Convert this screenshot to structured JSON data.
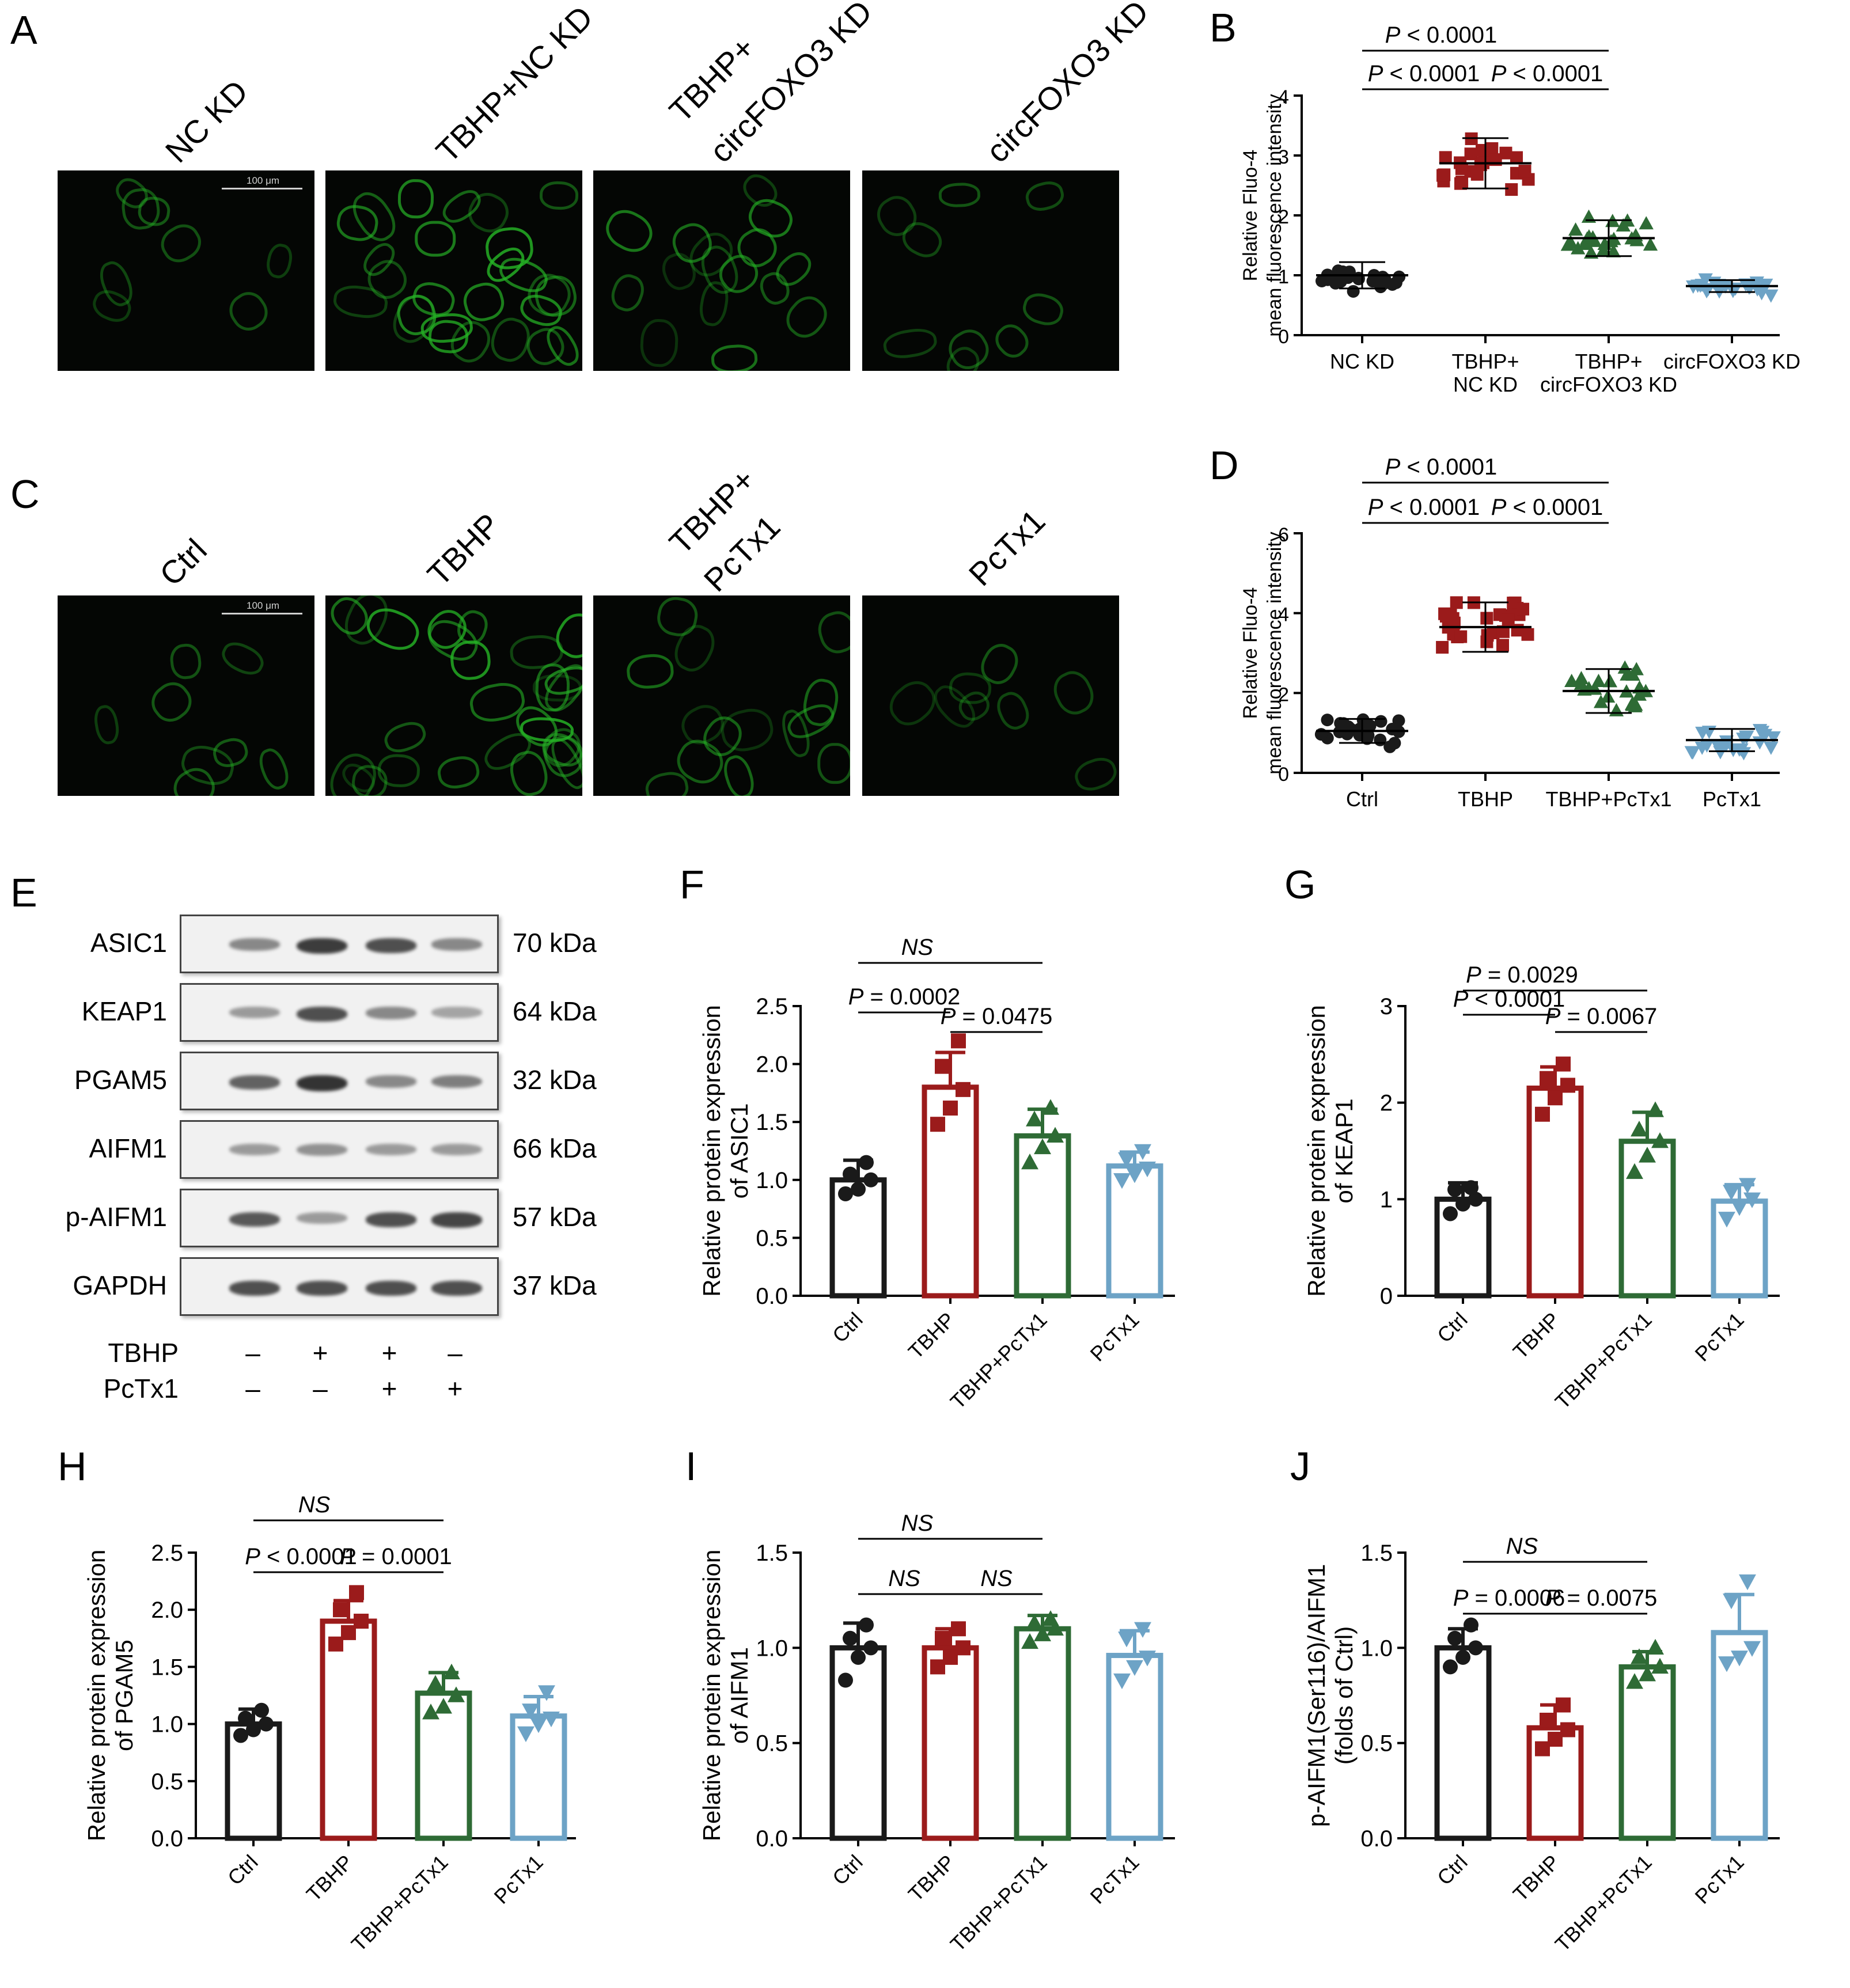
{
  "panels": {
    "A": {
      "letter": "A",
      "labels": [
        "NC KD",
        "TBHP+NC KD",
        "TBHP+",
        "circFOXO3 KD",
        "circFOXO3 KD"
      ],
      "scale": "100 μm"
    },
    "C": {
      "letter": "C",
      "labels": [
        "Ctrl",
        "TBHP",
        "TBHP+",
        "PcTx1",
        "PcTx1"
      ],
      "scale": "100 μm"
    },
    "E": {
      "letter": "E",
      "proteins": [
        "ASIC1",
        "KEAP1",
        "PGAM5",
        "AIFM1",
        "p-AIFM1",
        "GAPDH"
      ],
      "kda": [
        "70 kDa",
        "64 kDa",
        "32 kDa",
        "66 kDa",
        "57 kDa",
        "37 kDa"
      ],
      "band_intensity": [
        [
          0.55,
          0.95,
          0.85,
          0.55
        ],
        [
          0.45,
          0.85,
          0.55,
          0.4
        ],
        [
          0.75,
          1.0,
          0.55,
          0.6
        ],
        [
          0.45,
          0.5,
          0.45,
          0.45
        ],
        [
          0.8,
          0.45,
          0.85,
          0.9
        ],
        [
          0.85,
          0.85,
          0.85,
          0.85
        ]
      ],
      "treat_labels": [
        "TBHP",
        "PcTx1"
      ],
      "treat_signs": [
        [
          "–",
          "+",
          "+",
          "–"
        ],
        [
          "–",
          "–",
          "+",
          "+"
        ]
      ]
    }
  },
  "chart_data": [
    {
      "id": "B",
      "letter": "B",
      "type": "scatter",
      "ylabel": [
        "Relative Fluo-4",
        "mean fluorescence intensity"
      ],
      "ylim": [
        0,
        4
      ],
      "yticks": [
        0,
        1,
        2,
        3,
        4
      ],
      "categories": [
        [
          "NC KD"
        ],
        [
          "TBHP+",
          "NC KD"
        ],
        [
          "TBHP+",
          "circFOXO3 KD"
        ],
        [
          "circFOXO3 KD"
        ]
      ],
      "series": [
        {
          "mean": 1.0,
          "sd": 0.22,
          "n": 24,
          "color": "#1a1a1a",
          "marker": "circle"
        },
        {
          "mean": 2.87,
          "sd": 0.42,
          "n": 24,
          "color": "#9b1b1b",
          "marker": "square"
        },
        {
          "mean": 1.62,
          "sd": 0.3,
          "n": 24,
          "color": "#2e6b35",
          "marker": "triangle"
        },
        {
          "mean": 0.82,
          "sd": 0.1,
          "n": 24,
          "color": "#6da3c6",
          "marker": "triangle-down"
        }
      ],
      "comparisons": [
        {
          "from": 0,
          "to": 2,
          "label": "P < 0.0001"
        },
        {
          "from": 0,
          "to": 1,
          "label": "P < 0.0001"
        },
        {
          "from": 1,
          "to": 2,
          "label": "P < 0.0001"
        }
      ]
    },
    {
      "id": "D",
      "letter": "D",
      "type": "scatter",
      "ylabel": [
        "Relative Fluo-4",
        "mean fluorescence intensity"
      ],
      "ylim": [
        0,
        6
      ],
      "yticks": [
        0,
        2,
        4,
        6
      ],
      "categories": [
        [
          "Ctrl"
        ],
        [
          "TBHP"
        ],
        [
          "TBHP+PcTx1"
        ],
        [
          "PcTx1"
        ]
      ],
      "series": [
        {
          "mean": 1.05,
          "sd": 0.3,
          "n": 24,
          "color": "#1a1a1a",
          "marker": "circle"
        },
        {
          "mean": 3.65,
          "sd": 0.62,
          "n": 28,
          "color": "#9b1b1b",
          "marker": "square"
        },
        {
          "mean": 2.05,
          "sd": 0.55,
          "n": 24,
          "color": "#2e6b35",
          "marker": "triangle"
        },
        {
          "mean": 0.82,
          "sd": 0.28,
          "n": 24,
          "color": "#6da3c6",
          "marker": "triangle-down"
        }
      ],
      "comparisons": [
        {
          "from": 0,
          "to": 2,
          "label": "P < 0.0001"
        },
        {
          "from": 0,
          "to": 1,
          "label": "P < 0.0001"
        },
        {
          "from": 1,
          "to": 2,
          "label": "P < 0.0001"
        }
      ]
    },
    {
      "id": "F",
      "letter": "F",
      "type": "bar",
      "ylabel": [
        "Relative protein expression",
        "of ASIC1"
      ],
      "ylim": [
        0,
        2.5
      ],
      "yticks": [
        "0.0",
        "0.5",
        "1.0",
        "1.5",
        "2.0",
        "2.5"
      ],
      "categories": [
        "Ctrl",
        "TBHP",
        "TBHP+PcTx1",
        "PcTx1"
      ],
      "values": [
        1.0,
        1.8,
        1.38,
        1.12
      ],
      "errors": [
        0.17,
        0.3,
        0.23,
        0.12
      ],
      "points": [
        [
          0.88,
          0.92,
          1.0,
          1.05,
          1.15
        ],
        [
          1.48,
          1.62,
          1.78,
          1.98,
          2.2
        ],
        [
          1.15,
          1.28,
          1.38,
          1.52,
          1.62
        ],
        [
          1.0,
          1.05,
          1.1,
          1.18,
          1.25
        ]
      ],
      "colors": [
        "#1a1a1a",
        "#9b1b1b",
        "#2e6b35",
        "#6da3c6"
      ],
      "markers": [
        "circle",
        "square",
        "triangle",
        "triangle-down"
      ],
      "comparisons": [
        {
          "from": 0,
          "to": 2,
          "label": "NS",
          "italic": true
        },
        {
          "from": 0,
          "to": 1,
          "label": "P = 0.0002"
        },
        {
          "from": 1,
          "to": 2,
          "label": "P = 0.0475"
        }
      ]
    },
    {
      "id": "G",
      "letter": "G",
      "type": "bar",
      "ylabel": [
        "Relative protein expression",
        "of KEAP1"
      ],
      "ylim": [
        0,
        3
      ],
      "yticks": [
        "0",
        "1",
        "2",
        "3"
      ],
      "categories": [
        "Ctrl",
        "TBHP",
        "TBHP+PcTx1",
        "PcTx1"
      ],
      "values": [
        1.0,
        2.15,
        1.6,
        0.98
      ],
      "errors": [
        0.17,
        0.22,
        0.3,
        0.17
      ],
      "points": [
        [
          0.85,
          0.95,
          1.0,
          1.1,
          1.12
        ],
        [
          1.88,
          2.05,
          2.18,
          2.25,
          2.4
        ],
        [
          1.28,
          1.45,
          1.6,
          1.72,
          1.92
        ],
        [
          0.8,
          0.92,
          1.0,
          1.08,
          1.15
        ]
      ],
      "colors": [
        "#1a1a1a",
        "#9b1b1b",
        "#2e6b35",
        "#6da3c6"
      ],
      "markers": [
        "circle",
        "square",
        "triangle",
        "triangle-down"
      ],
      "comparisons": [
        {
          "from": 0,
          "to": 2,
          "label": "P = 0.0029"
        },
        {
          "from": 0,
          "to": 1,
          "label": "P < 0.0001"
        },
        {
          "from": 1,
          "to": 2,
          "label": "P = 0.0067"
        }
      ]
    },
    {
      "id": "H",
      "letter": "H",
      "type": "bar",
      "ylabel": [
        "Relative protein expression",
        "of PGAM5"
      ],
      "ylim": [
        0,
        2.5
      ],
      "yticks": [
        "0.0",
        "0.5",
        "1.0",
        "1.5",
        "2.0",
        "2.5"
      ],
      "categories": [
        "Ctrl",
        "TBHP",
        "TBHP+PcTx1",
        "PcTx1"
      ],
      "values": [
        1.0,
        1.9,
        1.27,
        1.07
      ],
      "errors": [
        0.13,
        0.18,
        0.18,
        0.17
      ],
      "points": [
        [
          0.9,
          0.95,
          1.0,
          1.05,
          1.12
        ],
        [
          1.7,
          1.8,
          1.9,
          2.0,
          2.15
        ],
        [
          1.1,
          1.15,
          1.25,
          1.35,
          1.45
        ],
        [
          0.92,
          1.0,
          1.05,
          1.12,
          1.28
        ]
      ],
      "colors": [
        "#1a1a1a",
        "#9b1b1b",
        "#2e6b35",
        "#6da3c6"
      ],
      "markers": [
        "circle",
        "square",
        "triangle",
        "triangle-down"
      ],
      "comparisons": [
        {
          "from": 0,
          "to": 2,
          "label": "NS",
          "italic": true
        },
        {
          "from": 0,
          "to": 1,
          "label": "P < 0.0001"
        },
        {
          "from": 1,
          "to": 2,
          "label": "P = 0.0001"
        }
      ]
    },
    {
      "id": "I",
      "letter": "I",
      "type": "bar",
      "ylabel": [
        "Relative protein expression",
        "of AIFM1"
      ],
      "ylim": [
        0,
        1.5
      ],
      "yticks": [
        "0.0",
        "0.5",
        "1.0",
        "1.5"
      ],
      "categories": [
        "Ctrl",
        "TBHP",
        "TBHP+PcTx1",
        "PcTx1"
      ],
      "values": [
        1.0,
        1.0,
        1.1,
        0.96
      ],
      "errors": [
        0.13,
        0.1,
        0.07,
        0.13
      ],
      "points": [
        [
          0.83,
          0.95,
          1.0,
          1.05,
          1.12
        ],
        [
          0.9,
          0.95,
          1.0,
          1.05,
          1.1
        ],
        [
          1.03,
          1.07,
          1.1,
          1.13,
          1.15
        ],
        [
          0.83,
          0.9,
          0.95,
          1.05,
          1.1
        ]
      ],
      "colors": [
        "#1a1a1a",
        "#9b1b1b",
        "#2e6b35",
        "#6da3c6"
      ],
      "markers": [
        "circle",
        "square",
        "triangle",
        "triangle-down"
      ],
      "comparisons": [
        {
          "from": 0,
          "to": 2,
          "label": "NS",
          "italic": true
        },
        {
          "from": 0,
          "to": 1,
          "label": "NS",
          "italic": true
        },
        {
          "from": 1,
          "to": 2,
          "label": "NS",
          "italic": true
        }
      ]
    },
    {
      "id": "J",
      "letter": "J",
      "type": "bar",
      "ylabel": [
        "p-AIFM1(Ser116)/AIFM1",
        "(folds of Ctrl)"
      ],
      "ylim": [
        0,
        1.5
      ],
      "yticks": [
        "0.0",
        "0.5",
        "1.0",
        "1.5"
      ],
      "categories": [
        "Ctrl",
        "TBHP",
        "TBHP+PcTx1",
        "PcTx1"
      ],
      "values": [
        1.0,
        0.58,
        0.9,
        1.08
      ],
      "errors": [
        0.1,
        0.12,
        0.08,
        0.2
      ],
      "points": [
        [
          0.9,
          0.95,
          1.0,
          1.05,
          1.12
        ],
        [
          0.47,
          0.52,
          0.57,
          0.62,
          0.7
        ],
        [
          0.82,
          0.86,
          0.9,
          0.95,
          1.0
        ],
        [
          0.92,
          0.95,
          1.0,
          1.25,
          1.35
        ]
      ],
      "colors": [
        "#1a1a1a",
        "#9b1b1b",
        "#2e6b35",
        "#6da3c6"
      ],
      "markers": [
        "circle",
        "square",
        "triangle",
        "triangle-down"
      ],
      "comparisons": [
        {
          "from": 0,
          "to": 2,
          "label": "NS",
          "italic": true
        },
        {
          "from": 0,
          "to": 1,
          "label": "P = 0.0006"
        },
        {
          "from": 1,
          "to": 2,
          "label": "P = 0.0075"
        }
      ]
    }
  ]
}
